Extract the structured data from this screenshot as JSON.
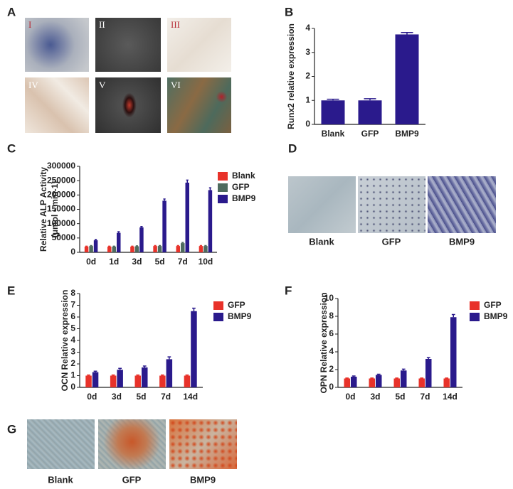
{
  "panels": [
    "A",
    "B",
    "C",
    "D",
    "E",
    "F",
    "G"
  ],
  "images": {
    "A": {
      "labels": [
        "I",
        "II",
        "III",
        "IV",
        "V",
        "VI"
      ]
    },
    "D": {
      "captions": [
        "Blank",
        "GFP",
        "BMP9"
      ]
    },
    "G": {
      "captions": [
        "Blank",
        "GFP",
        "BMP9"
      ]
    }
  },
  "chart_data": [
    {
      "type": "bar",
      "ylabel": "Runx2 relative expression",
      "categories": [
        "Blank",
        "GFP",
        "BMP9"
      ],
      "values": [
        1.0,
        1.0,
        3.75
      ],
      "errors": [
        0.05,
        0.07,
        0.08
      ],
      "color": "#2a1a8c",
      "ylim": [
        0,
        4
      ],
      "yticks": [
        0,
        1,
        2,
        3,
        4
      ]
    },
    {
      "type": "bar",
      "ylabel": "Relative ALP Activity",
      "ylabel_unit": "(μmol • min-1)",
      "categories": [
        "0d",
        "1d",
        "3d",
        "5d",
        "7d",
        "10d"
      ],
      "series": [
        {
          "name": "Blank",
          "color": "#e8322a",
          "values": [
            20000,
            20000,
            20000,
            22000,
            22000,
            22000
          ],
          "errors": [
            1500,
            1500,
            1500,
            1500,
            1500,
            1500
          ]
        },
        {
          "name": "GFP",
          "color": "#4e6b5e",
          "values": [
            22000,
            20000,
            21000,
            22000,
            32000,
            22000
          ],
          "errors": [
            1500,
            1500,
            1500,
            1500,
            2500,
            1500
          ]
        },
        {
          "name": "BMP9",
          "color": "#2a1a8c",
          "values": [
            42000,
            68000,
            87000,
            180000,
            243000,
            217000
          ],
          "errors": [
            2500,
            4000,
            3000,
            6000,
            9000,
            8000
          ]
        }
      ],
      "ylim": [
        0,
        300000
      ],
      "yticks": [
        0,
        50000,
        100000,
        150000,
        200000,
        250000,
        300000
      ]
    },
    {
      "type": "bar",
      "ylabel": "OCN Relative expression",
      "categories": [
        "0d",
        "3d",
        "5d",
        "7d",
        "14d"
      ],
      "series": [
        {
          "name": "GFP",
          "color": "#e8322a",
          "values": [
            1.0,
            1.0,
            1.0,
            1.0,
            1.0
          ],
          "errors": [
            0.05,
            0.05,
            0.05,
            0.05,
            0.05
          ]
        },
        {
          "name": "BMP9",
          "color": "#2a1a8c",
          "values": [
            1.3,
            1.5,
            1.7,
            2.4,
            6.5
          ],
          "errors": [
            0.08,
            0.12,
            0.12,
            0.2,
            0.25
          ]
        }
      ],
      "ylim": [
        0,
        8
      ],
      "yticks": [
        0,
        1,
        2,
        3,
        4,
        5,
        6,
        7,
        8
      ]
    },
    {
      "type": "bar",
      "ylabel": "OPN Relative expression",
      "categories": [
        "0d",
        "3d",
        "5d",
        "7d",
        "14d"
      ],
      "series": [
        {
          "name": "GFP",
          "color": "#e8322a",
          "values": [
            1.0,
            1.0,
            1.0,
            1.0,
            1.0
          ],
          "errors": [
            0.05,
            0.05,
            0.05,
            0.05,
            0.05
          ]
        },
        {
          "name": "BMP9",
          "color": "#2a1a8c",
          "values": [
            1.2,
            1.4,
            1.9,
            3.2,
            7.9
          ],
          "errors": [
            0.08,
            0.08,
            0.15,
            0.15,
            0.3
          ]
        }
      ],
      "ylim": [
        0,
        10
      ],
      "yticks": [
        0,
        2,
        4,
        6,
        8,
        10
      ]
    }
  ]
}
